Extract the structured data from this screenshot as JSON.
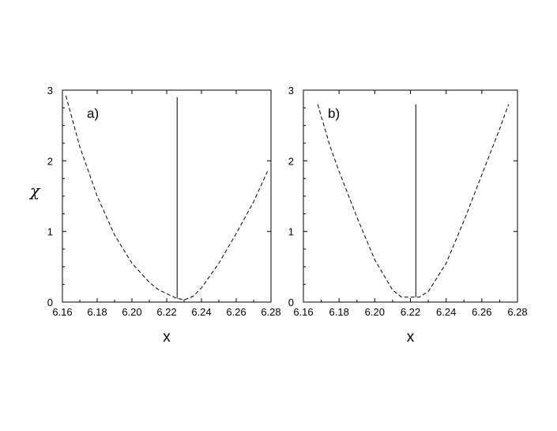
{
  "chart_data": [
    {
      "type": "line",
      "panel_label": "a)",
      "xlabel": "x",
      "ylabel": "χ",
      "xlim": [
        6.16,
        6.28
      ],
      "ylim": [
        0,
        3
      ],
      "xticks": [
        "6.16",
        "6.18",
        "6.20",
        "6.22",
        "6.24",
        "6.26",
        "6.28"
      ],
      "yticks": [
        "0",
        "1",
        "2",
        "3"
      ],
      "grid": false,
      "series": [
        {
          "style": "dashed",
          "x": [
            6.162,
            6.17,
            6.18,
            6.19,
            6.2,
            6.21,
            6.215,
            6.22,
            6.225,
            6.23,
            6.235,
            6.24,
            6.25,
            6.26,
            6.27,
            6.278
          ],
          "y": [
            2.92,
            2.2,
            1.5,
            0.95,
            0.55,
            0.28,
            0.18,
            0.12,
            0.06,
            0.03,
            0.08,
            0.2,
            0.55,
            0.97,
            1.42,
            1.85
          ]
        },
        {
          "style": "solid",
          "x": [
            6.226,
            6.226
          ],
          "y": [
            0.05,
            2.9
          ]
        }
      ]
    },
    {
      "type": "line",
      "panel_label": "b)",
      "xlabel": "x",
      "xlim": [
        6.16,
        6.28
      ],
      "ylim": [
        0,
        3
      ],
      "xticks": [
        "6.16",
        "6.18",
        "6.20",
        "6.22",
        "6.24",
        "6.26",
        "6.28"
      ],
      "yticks": [
        "0",
        "1",
        "2",
        "3"
      ],
      "grid": false,
      "series": [
        {
          "style": "dashed",
          "x": [
            6.168,
            6.175,
            6.18,
            6.19,
            6.2,
            6.21,
            6.215,
            6.22,
            6.225,
            6.23,
            6.24,
            6.25,
            6.26,
            6.27,
            6.275
          ],
          "y": [
            2.8,
            2.2,
            1.85,
            1.2,
            0.6,
            0.17,
            0.07,
            0.07,
            0.07,
            0.15,
            0.55,
            1.15,
            1.8,
            2.45,
            2.8
          ]
        },
        {
          "style": "solid",
          "x": [
            6.223,
            6.223
          ],
          "y": [
            0.07,
            2.8
          ]
        }
      ]
    }
  ]
}
